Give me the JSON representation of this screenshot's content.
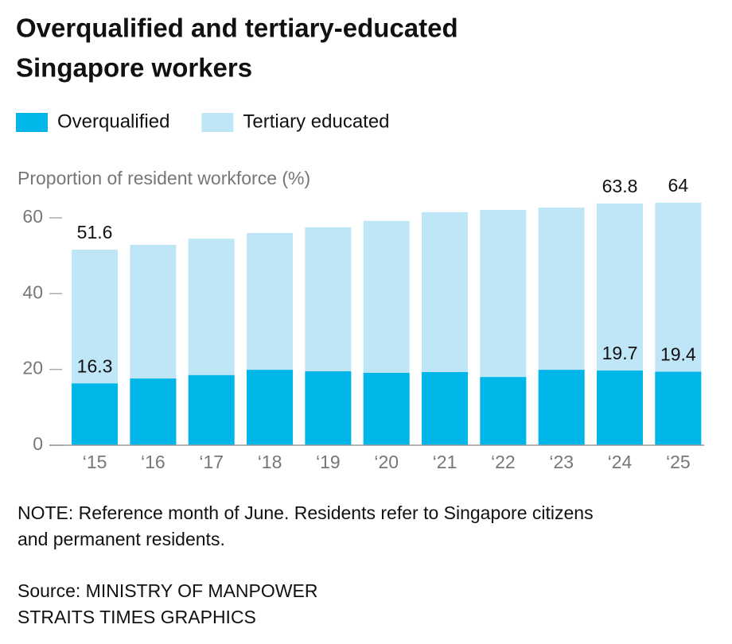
{
  "chart_data": {
    "type": "bar",
    "overlap": true,
    "title": [
      "Overqualified and tertiary-educated",
      "Singapore workers"
    ],
    "y_label": "Proportion of resident workforce (%)",
    "categories": [
      "‘15",
      "‘16",
      "‘17",
      "‘18",
      "‘19",
      "‘20",
      "‘21",
      "‘22",
      "‘23",
      "‘24",
      "‘25"
    ],
    "series": [
      {
        "name": "Tertiary educated",
        "color": "#bfe6f7",
        "values": [
          51.6,
          52.9,
          54.5,
          56.0,
          57.5,
          59.2,
          61.5,
          62.1,
          62.7,
          63.8,
          64
        ],
        "value_labels": [
          "51.6",
          null,
          null,
          null,
          null,
          null,
          null,
          null,
          null,
          "63.8",
          "64"
        ]
      },
      {
        "name": "Overqualified",
        "color": "#00b6e9",
        "values": [
          16.3,
          17.6,
          18.5,
          19.9,
          19.5,
          19.1,
          19.3,
          18.0,
          19.9,
          19.7,
          19.4
        ],
        "value_labels": [
          "16.3",
          null,
          null,
          null,
          null,
          null,
          null,
          null,
          null,
          "19.7",
          "19.4"
        ]
      }
    ],
    "ylim": [
      0,
      60
    ],
    "yticks": [
      0,
      20,
      40,
      60
    ],
    "note": [
      "NOTE: Reference month of June. Residents refer to Singapore citizens",
      "and permanent residents."
    ],
    "source": [
      "Source: MINISTRY OF MANPOWER",
      "STRAITS TIMES GRAPHICS"
    ]
  }
}
